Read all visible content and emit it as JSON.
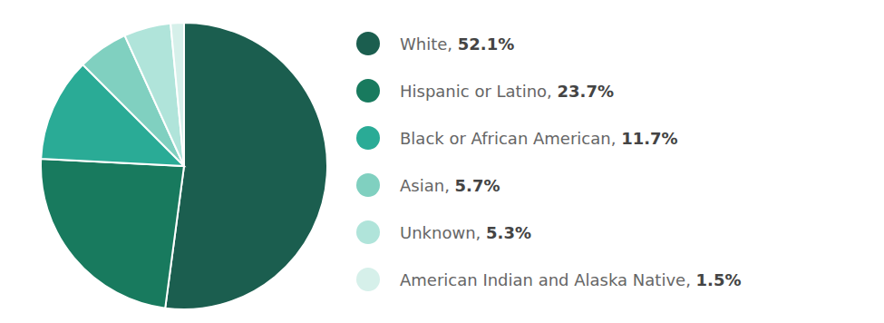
{
  "chart_data": {
    "type": "pie",
    "categories": [
      "White, ",
      "Hispanic or Latino, ",
      "Black or African American, ",
      "Asian, ",
      "Unknown, ",
      "American Indian and Alaska Native, "
    ],
    "values": [
      52.1,
      23.7,
      11.7,
      5.7,
      5.3,
      1.5
    ],
    "value_labels": [
      "52.1%",
      "23.7%",
      "11.7%",
      "5.7%",
      "5.3%",
      "1.5%"
    ],
    "colors": [
      "#1b5e4f",
      "#187a5e",
      "#2aab96",
      "#80d0c0",
      "#b0e4da",
      "#d6f0ea"
    ],
    "legend": "right"
  }
}
